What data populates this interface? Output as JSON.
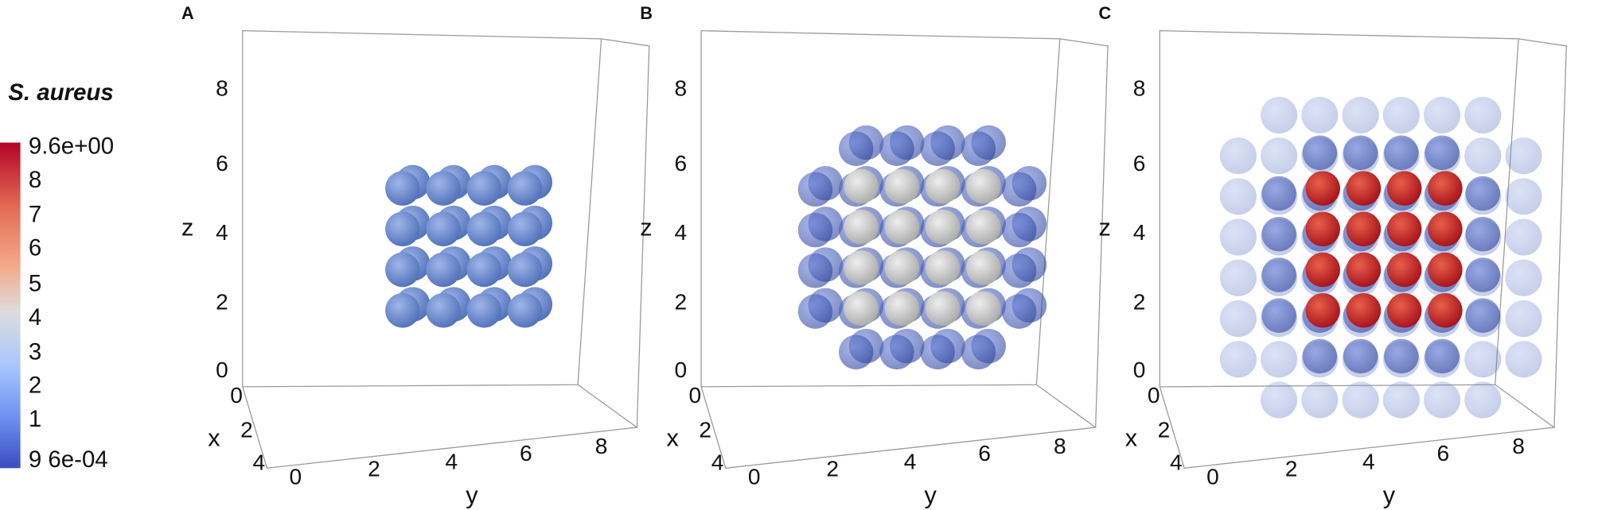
{
  "colorbar": {
    "title": "S. aureus",
    "labels": [
      "9.6e+00",
      "8",
      "7",
      "6",
      "5",
      "4",
      "3",
      "2",
      "1",
      "9 6e-04"
    ]
  },
  "panels": [
    {
      "label": "A",
      "z_label": "z",
      "z_ticks": [
        "0",
        "2",
        "4",
        "6",
        "8"
      ],
      "x_label": "x",
      "x_ticks": [
        "0",
        "2",
        "4"
      ],
      "y_label": "y",
      "y_ticks": [
        "0",
        "2",
        "4",
        "6",
        "8"
      ]
    },
    {
      "label": "B",
      "z_label": "z",
      "z_ticks": [
        "0",
        "2",
        "4",
        "6",
        "8"
      ],
      "x_label": "x",
      "x_ticks": [
        "0",
        "2",
        "4"
      ],
      "y_label": "y",
      "y_ticks": [
        "0",
        "2",
        "4",
        "6",
        "8"
      ]
    },
    {
      "label": "C",
      "z_label": "z",
      "z_ticks": [
        "0",
        "2",
        "4",
        "6",
        "8"
      ],
      "x_label": "x",
      "x_ticks": [
        "0",
        "2",
        "4"
      ],
      "y_label": "y",
      "y_ticks": [
        "0",
        "2",
        "4",
        "6",
        "8"
      ]
    }
  ]
}
